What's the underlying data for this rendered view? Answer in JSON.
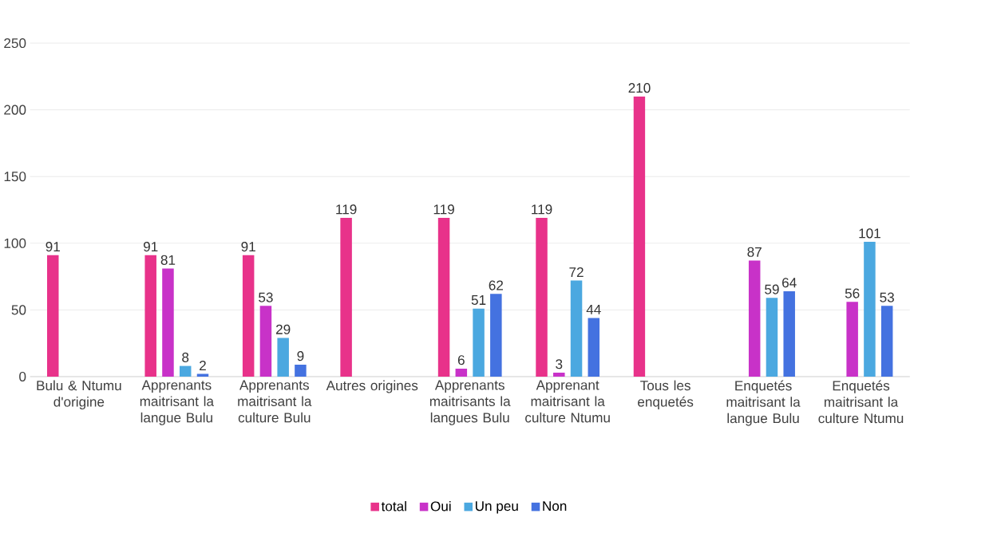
{
  "chart_data": {
    "type": "bar",
    "categories": [
      "Bulu & Ntumu d'origine",
      "Apprenants maitrisant la langue Bulu",
      "Apprenants maitrisant la culture Bulu",
      "Autres origines",
      "Apprenants maitrisants la langues Bulu",
      "Apprenant maitrisant la culture Ntumu",
      "Tous les enquetés",
      "Enquetés maitrisant la langue Bulu",
      "Enquetés maitrisant la culture Ntumu"
    ],
    "series": [
      {
        "name": "total",
        "color": "#e8328a",
        "values": [
          91,
          91,
          91,
          119,
          119,
          119,
          210,
          null,
          null
        ]
      },
      {
        "name": "Oui",
        "color": "#c832c8",
        "values": [
          null,
          81,
          53,
          null,
          6,
          3,
          null,
          87,
          56
        ]
      },
      {
        "name": "Un peu",
        "color": "#4ba8e0",
        "values": [
          null,
          8,
          29,
          null,
          51,
          72,
          null,
          59,
          101
        ]
      },
      {
        "name": "Non",
        "color": "#4472e0",
        "values": [
          null,
          2,
          9,
          null,
          62,
          44,
          null,
          64,
          53
        ]
      }
    ],
    "ylim": [
      0,
      250
    ],
    "yticks": [
      0,
      50,
      100,
      150,
      200,
      250
    ],
    "grid": "y",
    "legend": "bottom",
    "data_labels": true
  }
}
